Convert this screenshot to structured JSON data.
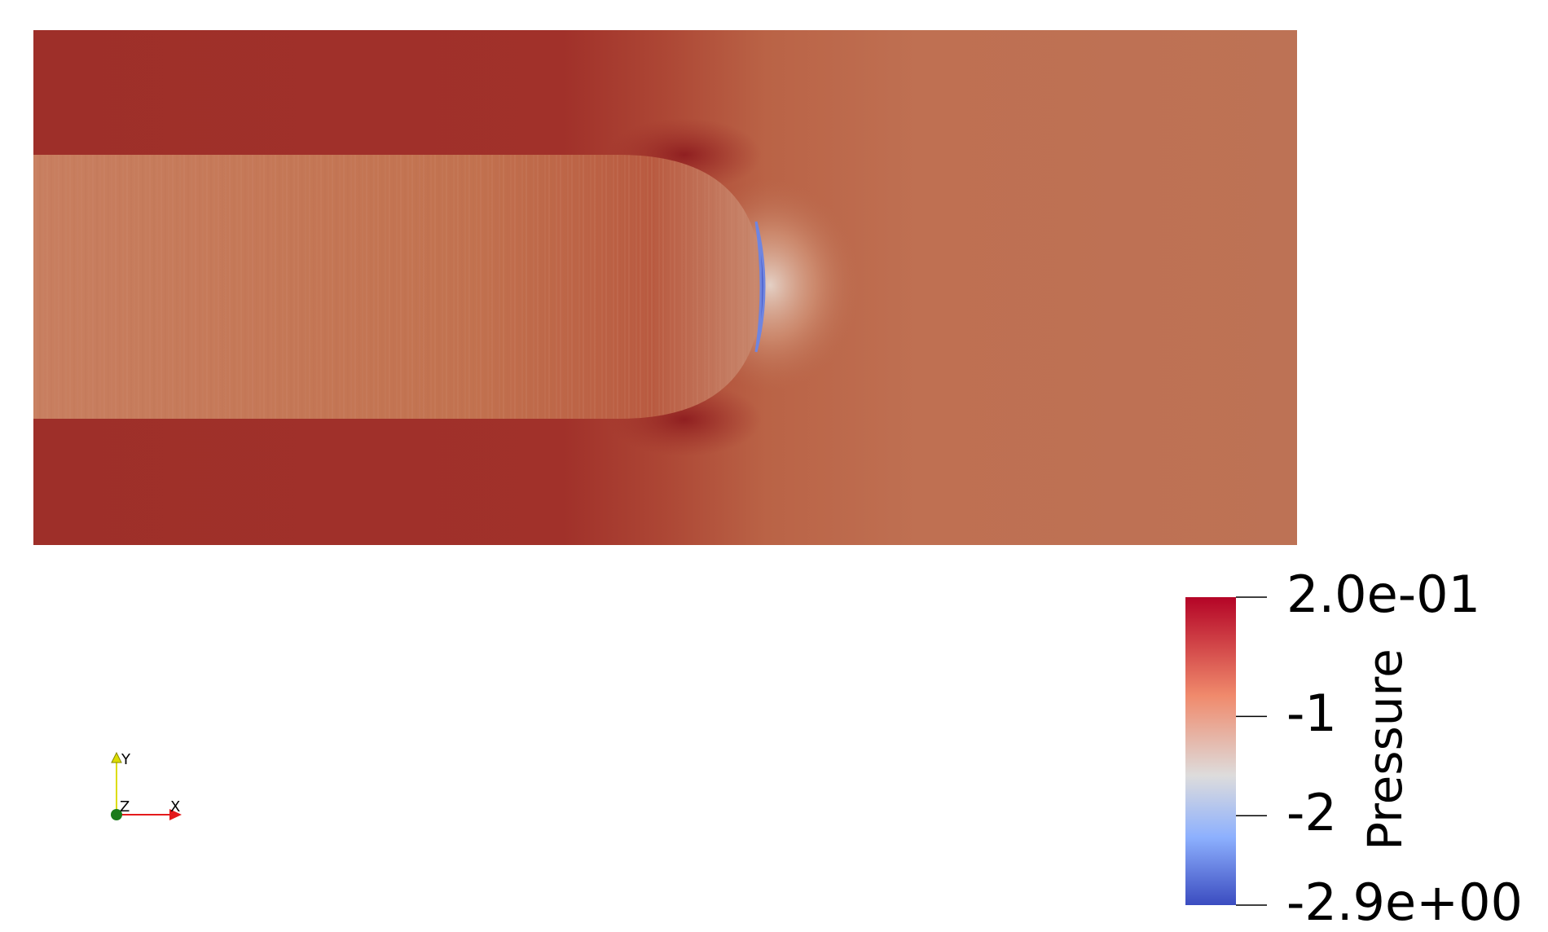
{
  "colorbar": {
    "title": "Pressure",
    "range": [
      -2.9,
      0.2
    ],
    "ticks": [
      {
        "label": "2.0e-01",
        "value": 0.2
      },
      {
        "label": "-1",
        "value": -1
      },
      {
        "label": "-2",
        "value": -2
      },
      {
        "label": "-2.9e+00",
        "value": -2.9
      }
    ],
    "colors": {
      "high": "#b40426",
      "upper_mid": "#f08a6c",
      "mid": "#dddcdc",
      "lower_mid": "#8db0fe",
      "low": "#3b4cc0"
    }
  },
  "field": {
    "channel_far_pressure_color": "#bd7255",
    "wall_band_color": "#9e2f29",
    "bubble_interior_color": "#c57a5c",
    "bubble_tip_min_color": "#3d52c4"
  },
  "axes_triad": {
    "x_label": "X",
    "y_label": "Y",
    "z_label": "Z",
    "x_color": "#e41a1c",
    "y_color": "#dddd00",
    "z_color": "#1a7a1a"
  }
}
